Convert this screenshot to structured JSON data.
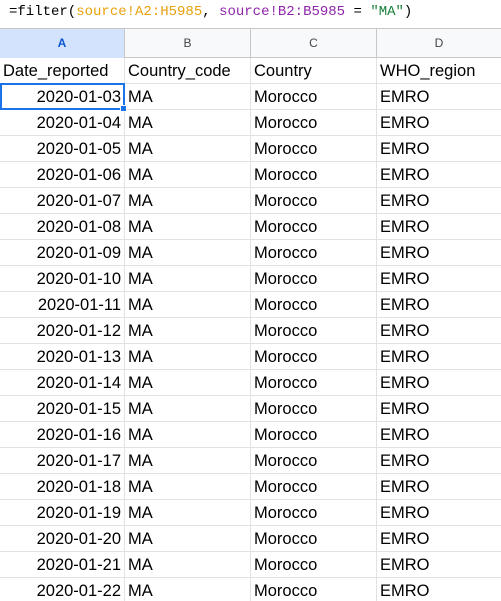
{
  "formula": {
    "prefix": "=filter(",
    "ref1": "source!A2:H5985",
    "sep": ", ",
    "ref2": "source!B2:B5985",
    "op": " = ",
    "str": "\"MA\"",
    "suffix": ")"
  },
  "columns": [
    "A",
    "B",
    "C",
    "D"
  ],
  "active_column": "A",
  "header_row": [
    "Date_reported",
    "Country_code",
    "Country",
    "WHO_region"
  ],
  "rows": [
    [
      "2020-01-03",
      "MA",
      "Morocco",
      "EMRO"
    ],
    [
      "2020-01-04",
      "MA",
      "Morocco",
      "EMRO"
    ],
    [
      "2020-01-05",
      "MA",
      "Morocco",
      "EMRO"
    ],
    [
      "2020-01-06",
      "MA",
      "Morocco",
      "EMRO"
    ],
    [
      "2020-01-07",
      "MA",
      "Morocco",
      "EMRO"
    ],
    [
      "2020-01-08",
      "MA",
      "Morocco",
      "EMRO"
    ],
    [
      "2020-01-09",
      "MA",
      "Morocco",
      "EMRO"
    ],
    [
      "2020-01-10",
      "MA",
      "Morocco",
      "EMRO"
    ],
    [
      "2020-01-11",
      "MA",
      "Morocco",
      "EMRO"
    ],
    [
      "2020-01-12",
      "MA",
      "Morocco",
      "EMRO"
    ],
    [
      "2020-01-13",
      "MA",
      "Morocco",
      "EMRO"
    ],
    [
      "2020-01-14",
      "MA",
      "Morocco",
      "EMRO"
    ],
    [
      "2020-01-15",
      "MA",
      "Morocco",
      "EMRO"
    ],
    [
      "2020-01-16",
      "MA",
      "Morocco",
      "EMRO"
    ],
    [
      "2020-01-17",
      "MA",
      "Morocco",
      "EMRO"
    ],
    [
      "2020-01-18",
      "MA",
      "Morocco",
      "EMRO"
    ],
    [
      "2020-01-19",
      "MA",
      "Morocco",
      "EMRO"
    ],
    [
      "2020-01-20",
      "MA",
      "Morocco",
      "EMRO"
    ],
    [
      "2020-01-21",
      "MA",
      "Morocco",
      "EMRO"
    ],
    [
      "2020-01-22",
      "MA",
      "Morocco",
      "EMRO"
    ]
  ],
  "selected_cell": "A2"
}
